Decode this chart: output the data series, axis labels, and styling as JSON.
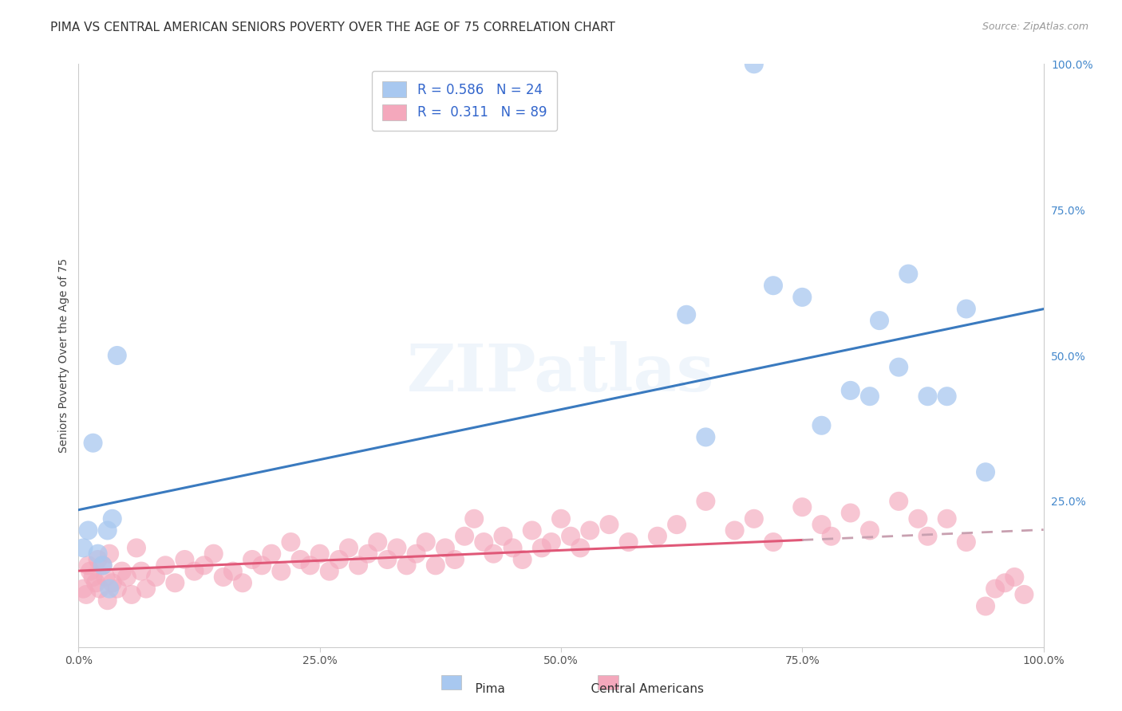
{
  "title": "PIMA VS CENTRAL AMERICAN SENIORS POVERTY OVER THE AGE OF 75 CORRELATION CHART",
  "source": "Source: ZipAtlas.com",
  "ylabel": "Seniors Poverty Over the Age of 75",
  "background_color": "#ffffff",
  "grid_color": "#d0d0d0",
  "watermark": "ZIPatlas",
  "pima_R": 0.586,
  "pima_N": 24,
  "ca_R": 0.311,
  "ca_N": 89,
  "pima_color": "#a8c8f0",
  "ca_color": "#f4a8bc",
  "trend_pima_color": "#3a7abf",
  "trend_ca_color": "#e05878",
  "trend_ca_dashed_color": "#c8a0b0",
  "pima_x": [
    0.5,
    1.0,
    1.5,
    2.0,
    2.5,
    3.0,
    3.2,
    3.5,
    4.0,
    63.0,
    65.0,
    70.0,
    72.0,
    75.0,
    77.0,
    80.0,
    82.0,
    83.0,
    85.0,
    86.0,
    88.0,
    90.0,
    92.0,
    94.0
  ],
  "pima_y": [
    17.0,
    20.0,
    35.0,
    16.0,
    14.0,
    20.0,
    10.0,
    22.0,
    50.0,
    57.0,
    36.0,
    100.0,
    62.0,
    60.0,
    38.0,
    44.0,
    43.0,
    56.0,
    48.0,
    64.0,
    43.0,
    43.0,
    58.0,
    30.0
  ],
  "ca_x": [
    0.5,
    0.8,
    1.0,
    1.2,
    1.5,
    1.8,
    2.0,
    2.2,
    2.5,
    2.8,
    3.0,
    3.2,
    3.5,
    4.0,
    4.5,
    5.0,
    5.5,
    6.0,
    6.5,
    7.0,
    8.0,
    9.0,
    10.0,
    11.0,
    12.0,
    13.0,
    14.0,
    15.0,
    16.0,
    17.0,
    18.0,
    19.0,
    20.0,
    21.0,
    22.0,
    23.0,
    24.0,
    25.0,
    26.0,
    27.0,
    28.0,
    29.0,
    30.0,
    31.0,
    32.0,
    33.0,
    34.0,
    35.0,
    36.0,
    37.0,
    38.0,
    39.0,
    40.0,
    41.0,
    42.0,
    43.0,
    44.0,
    45.0,
    46.0,
    47.0,
    48.0,
    49.0,
    50.0,
    51.0,
    52.0,
    53.0,
    55.0,
    57.0,
    60.0,
    62.0,
    65.0,
    68.0,
    70.0,
    72.0,
    75.0,
    77.0,
    78.0,
    80.0,
    82.0,
    85.0,
    87.0,
    88.0,
    90.0,
    92.0,
    94.0,
    95.0,
    96.0,
    97.0,
    98.0
  ],
  "ca_y": [
    10.0,
    9.0,
    14.0,
    13.0,
    12.0,
    11.0,
    15.0,
    10.0,
    14.0,
    12.0,
    8.0,
    16.0,
    11.0,
    10.0,
    13.0,
    12.0,
    9.0,
    17.0,
    13.0,
    10.0,
    12.0,
    14.0,
    11.0,
    15.0,
    13.0,
    14.0,
    16.0,
    12.0,
    13.0,
    11.0,
    15.0,
    14.0,
    16.0,
    13.0,
    18.0,
    15.0,
    14.0,
    16.0,
    13.0,
    15.0,
    17.0,
    14.0,
    16.0,
    18.0,
    15.0,
    17.0,
    14.0,
    16.0,
    18.0,
    14.0,
    17.0,
    15.0,
    19.0,
    22.0,
    18.0,
    16.0,
    19.0,
    17.0,
    15.0,
    20.0,
    17.0,
    18.0,
    22.0,
    19.0,
    17.0,
    20.0,
    21.0,
    18.0,
    19.0,
    21.0,
    25.0,
    20.0,
    22.0,
    18.0,
    24.0,
    21.0,
    19.0,
    23.0,
    20.0,
    25.0,
    22.0,
    19.0,
    22.0,
    18.0,
    7.0,
    10.0,
    11.0,
    12.0,
    9.0
  ],
  "xlim": [
    0,
    100
  ],
  "ylim": [
    0,
    100
  ],
  "xticks": [
    0,
    25,
    50,
    75,
    100
  ],
  "xticklabels": [
    "0.0%",
    "25.0%",
    "50.0%",
    "75.0%",
    "100.0%"
  ],
  "ytick_right": [
    25,
    50,
    75,
    100
  ],
  "ytick_right_labels": [
    "25.0%",
    "50.0%",
    "75.0%",
    "100.0%"
  ],
  "title_fontsize": 11,
  "source_fontsize": 9,
  "axis_label_fontsize": 10,
  "tick_fontsize": 10,
  "legend_fontsize": 12
}
